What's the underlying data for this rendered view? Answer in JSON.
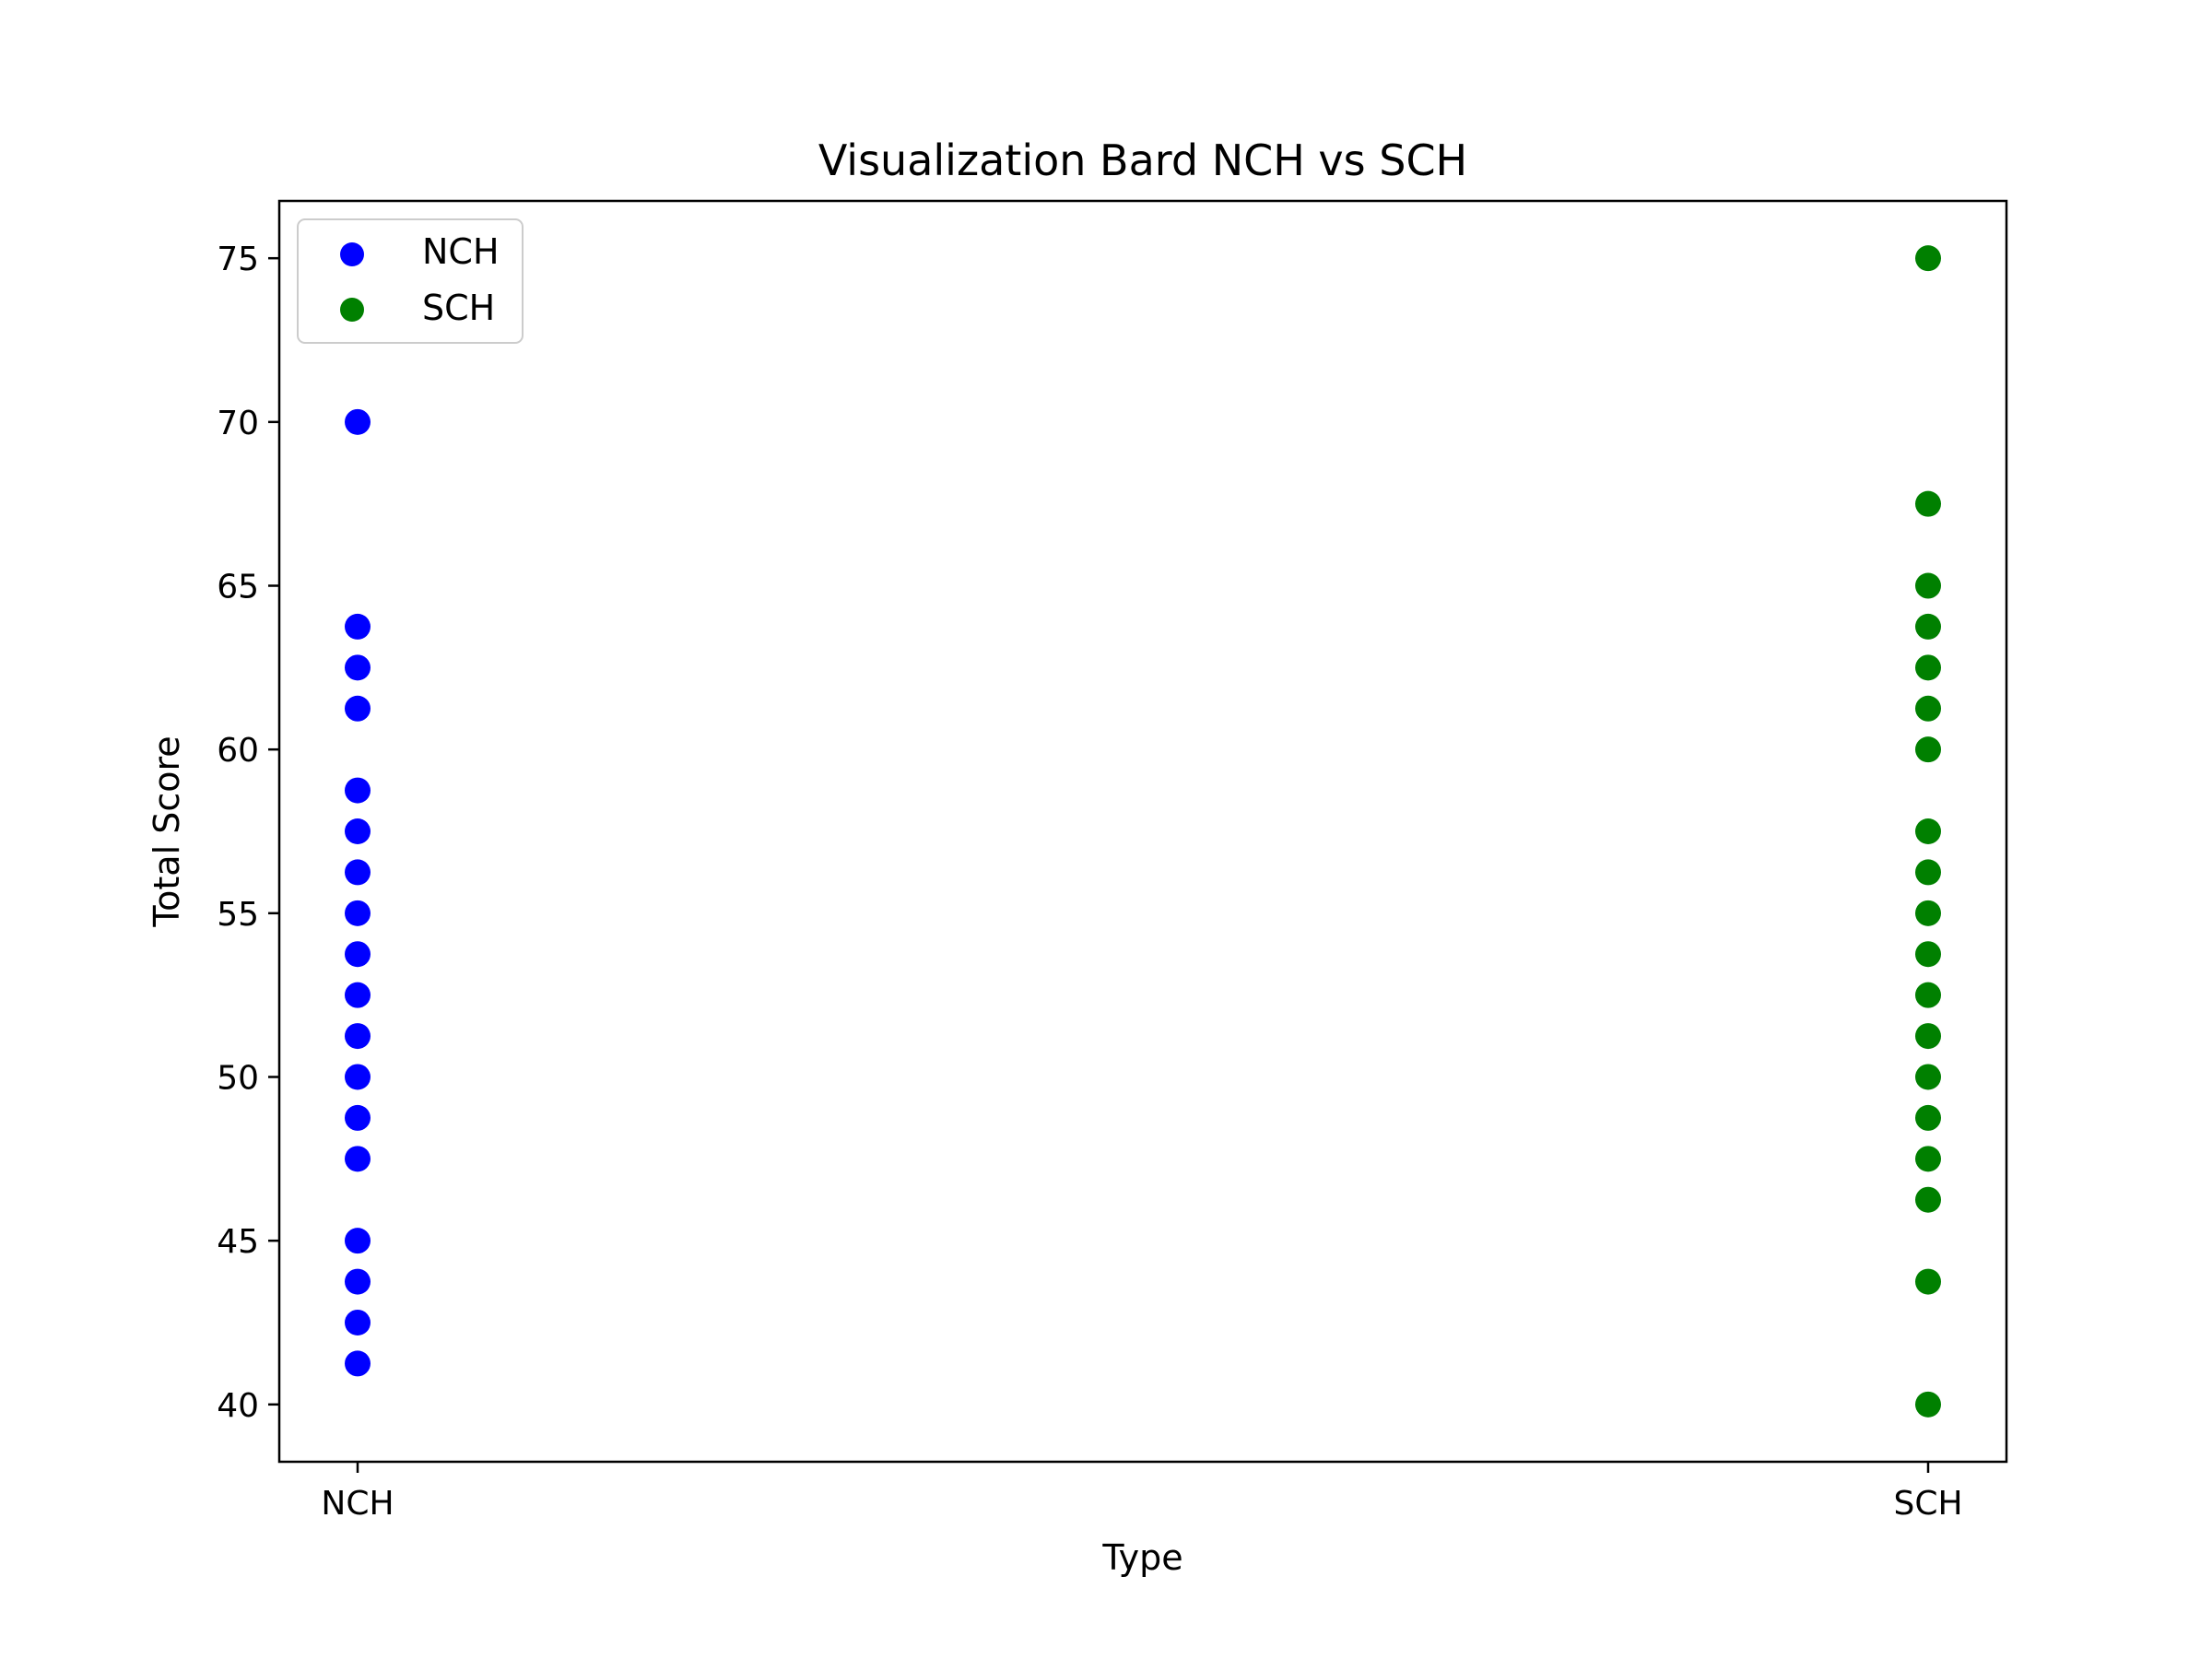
{
  "chart_data": {
    "type": "scatter",
    "title": "Visualization Bard NCH vs SCH",
    "xlabel": "Type",
    "ylabel": "Total Score",
    "categories": [
      "NCH",
      "SCH"
    ],
    "ylim": [
      38.25,
      76.75
    ],
    "yticks": [
      40,
      45,
      50,
      55,
      60,
      65,
      70,
      75
    ],
    "grid": false,
    "legend_position": "top-left",
    "series": [
      {
        "name": "NCH",
        "color": "#0000ff",
        "x": "NCH",
        "values": [
          70,
          63.75,
          62.5,
          61.25,
          58.75,
          57.5,
          56.25,
          55,
          53.75,
          52.5,
          51.25,
          50,
          48.75,
          47.5,
          45,
          43.75,
          42.5,
          41.25
        ]
      },
      {
        "name": "SCH",
        "color": "#008000",
        "x": "SCH",
        "values": [
          75,
          67.5,
          65,
          63.75,
          62.5,
          61.25,
          60,
          57.5,
          56.25,
          55,
          53.75,
          52.5,
          51.25,
          50,
          48.75,
          47.5,
          46.25,
          43.75,
          40
        ]
      }
    ]
  }
}
